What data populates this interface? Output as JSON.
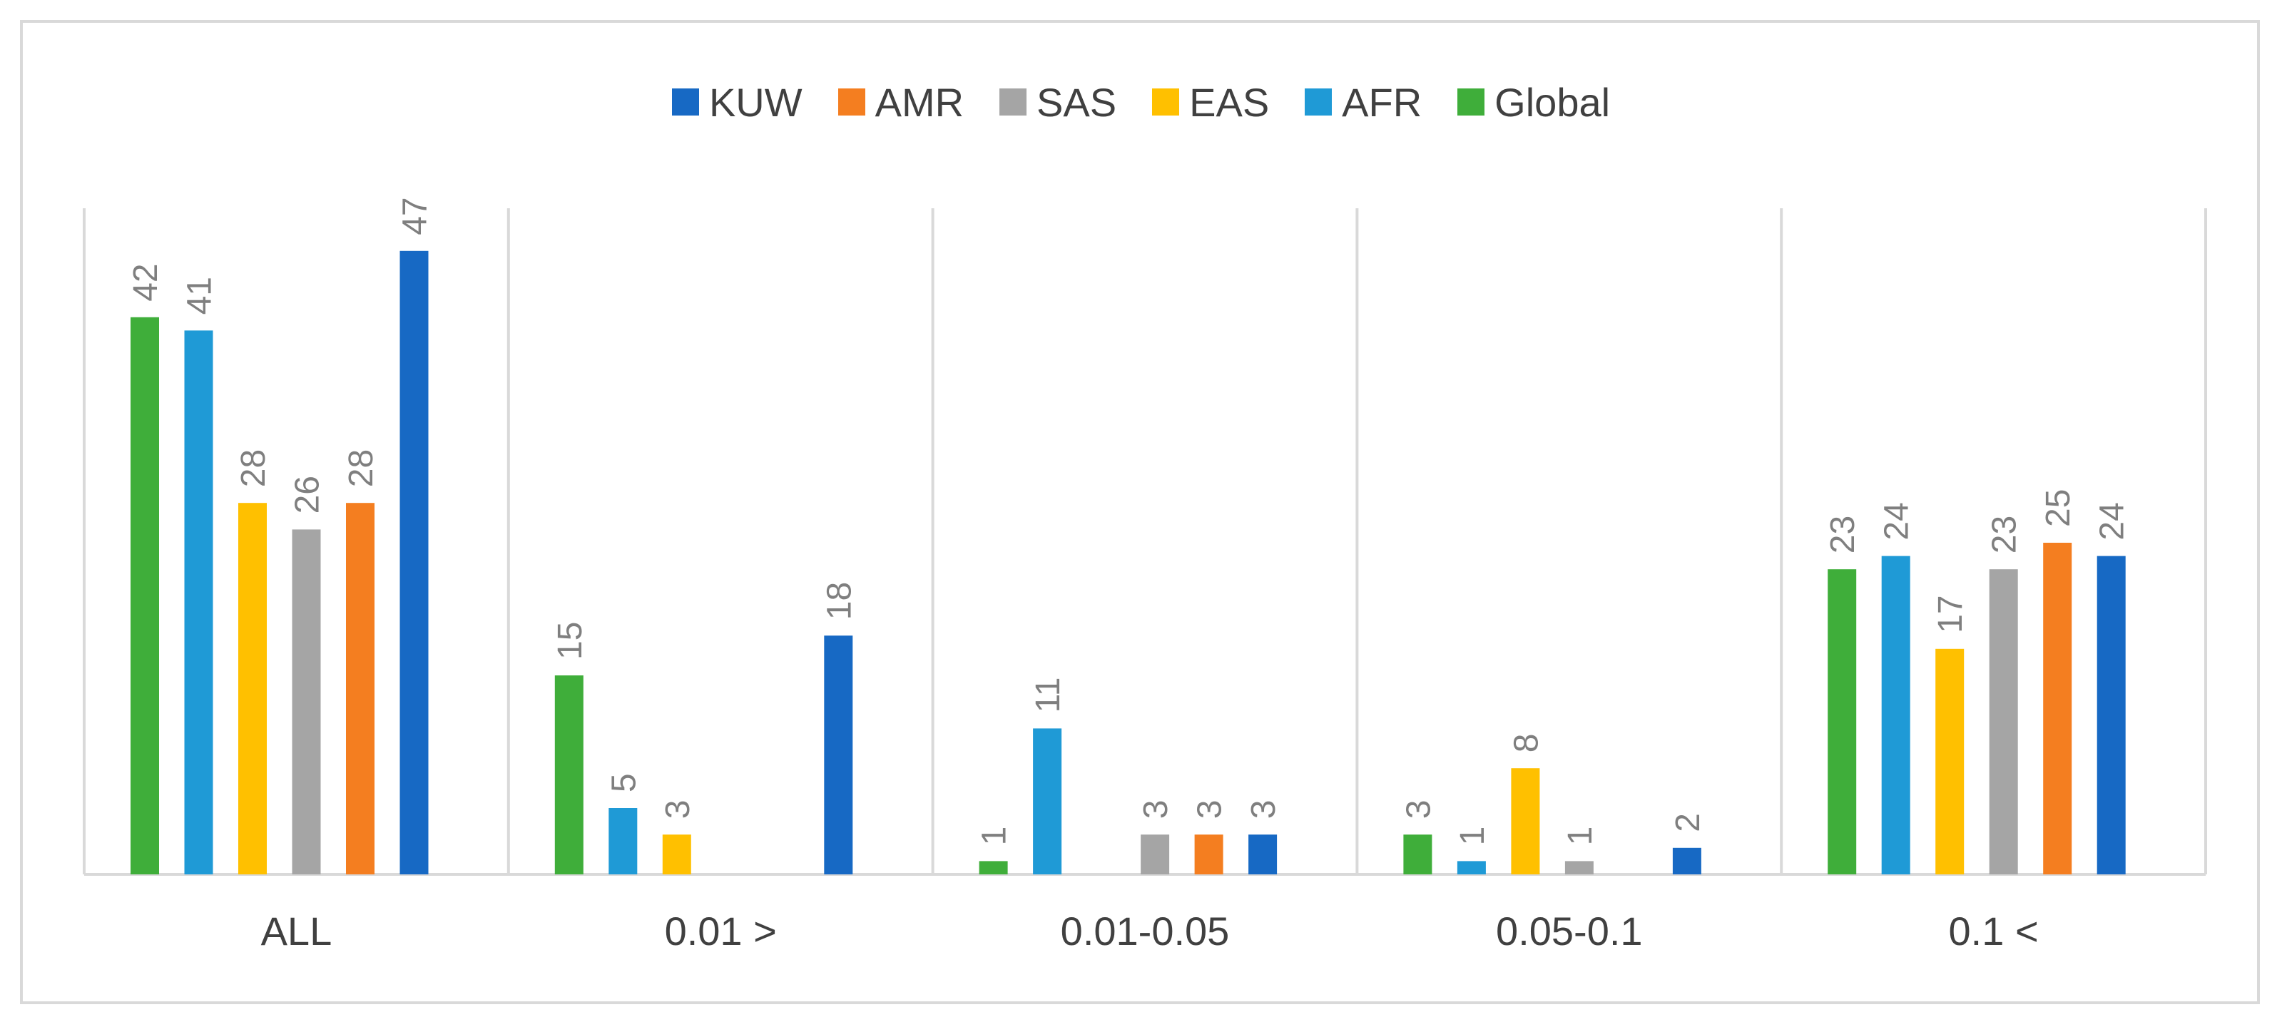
{
  "chart_data": {
    "type": "bar",
    "categories": [
      "ALL",
      "0.01 >",
      "0.01-0.05",
      "0.05-0.1",
      "0.1 <"
    ],
    "series": [
      {
        "name": "Global",
        "color": "#3fae3a",
        "values": [
          42,
          15,
          1,
          3,
          23
        ]
      },
      {
        "name": "AFR",
        "color": "#1f9ad6",
        "values": [
          41,
          5,
          11,
          1,
          24
        ]
      },
      {
        "name": "EAS",
        "color": "#ffc000",
        "values": [
          28,
          3,
          null,
          8,
          17
        ]
      },
      {
        "name": "SAS",
        "color": "#a5a5a5",
        "values": [
          26,
          null,
          3,
          1,
          23
        ]
      },
      {
        "name": "AMR",
        "color": "#f47e20",
        "values": [
          28,
          null,
          3,
          null,
          25
        ]
      },
      {
        "name": "KUW",
        "color": "#1769c4",
        "values": [
          47,
          18,
          3,
          2,
          24
        ]
      }
    ],
    "legend_order": [
      "KUW",
      "AMR",
      "SAS",
      "EAS",
      "AFR",
      "Global"
    ],
    "legend_position": "top",
    "ylim": [
      0,
      50
    ],
    "grid": false,
    "value_labels": true
  }
}
